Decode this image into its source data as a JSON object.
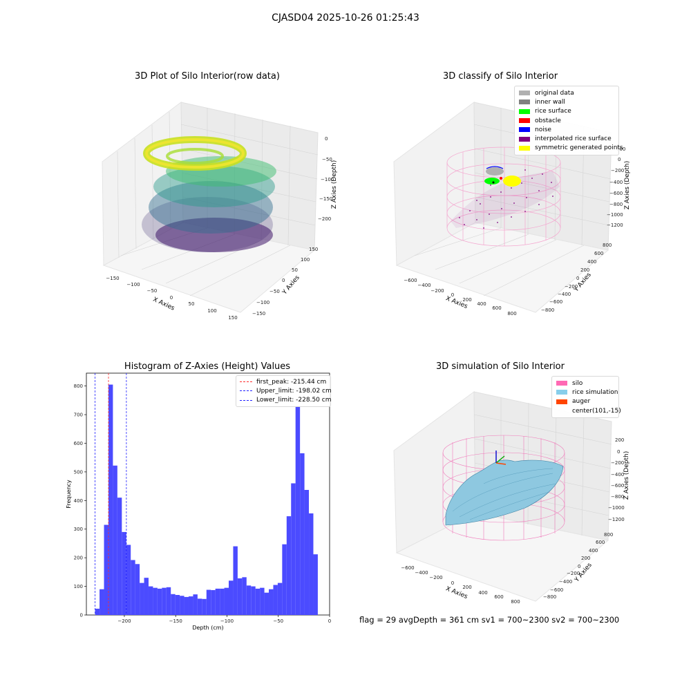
{
  "figure": {
    "title": "CJASD04 2025-10-26 01:25:43",
    "status": "flag = 29 avgDepth = 361 cm sv1 = 700~2300 sv2 = 700~2300"
  },
  "colors": {
    "hist_bar": "#4b4bff",
    "first_peak": "#ff2a2a",
    "limits": "#1f1fff",
    "silo_wire": "#f07aba",
    "rice_sim": "#8ec8e0",
    "auger": "#ff5511"
  },
  "chart_data": [
    {
      "type": "scatter3d",
      "title": "3D Plot of Silo Interior(row data)",
      "xlabel": "X Axies",
      "ylabel": "Y Axies",
      "zlabel": "Z Axies (Depth)",
      "xticks": [
        "−150",
        "−100",
        "−50",
        "0",
        "50",
        "100",
        "150"
      ],
      "yticks": [
        "−150",
        "−100",
        "−50",
        "0",
        "50",
        "100",
        "150"
      ],
      "zticks": [
        "0",
        "−50",
        "−100",
        "−150",
        "−200"
      ],
      "xlim": [
        -170,
        170
      ],
      "ylim": [
        -170,
        170
      ],
      "zlim": [
        -240,
        0
      ],
      "colormap": "viridis"
    },
    {
      "type": "scatter3d",
      "title": "3D classify of Silo Interior",
      "xlabel": "X Axies",
      "ylabel": "Y Axies",
      "zlabel": "Z Axies (Depth)",
      "xticks": [
        "−600",
        "−400",
        "−200",
        "0",
        "200",
        "400",
        "600",
        "800"
      ],
      "yticks": [
        "−800",
        "−600",
        "−400",
        "−200",
        "0",
        "200",
        "400",
        "600",
        "800"
      ],
      "zticks": [
        "200",
        "0",
        "−200",
        "−400",
        "−600",
        "−800",
        "−1000",
        "−1200"
      ],
      "legend": [
        {
          "label": "original data",
          "color": "#b0b0b0"
        },
        {
          "label": "inner wall",
          "color": "#808080"
        },
        {
          "label": "rice surface",
          "color": "#00ff00"
        },
        {
          "label": "obstacle",
          "color": "#ff0000"
        },
        {
          "label": "noise",
          "color": "#0000ff"
        },
        {
          "label": "interpolated rice surface",
          "color": "#800080"
        },
        {
          "label": "symmetric generated points",
          "color": "#ffff00"
        }
      ],
      "legend_position": "top-right"
    },
    {
      "type": "bar",
      "title": "Histogram of Z-Axies (Height) Values",
      "xlabel": "Depth (cm)",
      "ylabel": "Frequency",
      "xlim": [
        -237,
        0
      ],
      "ylim": [
        0,
        845
      ],
      "xticks": [
        -200,
        -150,
        -100,
        -50,
        0
      ],
      "yticks": [
        0,
        100,
        200,
        300,
        400,
        500,
        600,
        700,
        800
      ],
      "bin_start": -228.5,
      "bin_width": 4.34,
      "values": [
        22,
        90,
        315,
        805,
        522,
        410,
        290,
        245,
        192,
        178,
        112,
        130,
        100,
        95,
        92,
        95,
        97,
        73,
        70,
        67,
        63,
        65,
        72,
        57,
        56,
        88,
        87,
        92,
        92,
        95,
        120,
        240,
        128,
        132,
        103,
        100,
        92,
        95,
        78,
        90,
        105,
        112,
        247,
        345,
        460,
        730,
        565,
        437,
        355,
        212
      ],
      "lines": [
        {
          "label": "first_peak: -215.44 cm",
          "x": -215.44,
          "color": "#ff2a2a"
        },
        {
          "label": "Upper_limit: -198.02 cm",
          "x": -198.02,
          "color": "#1f1fff"
        },
        {
          "label": "Lower_limit: -228.50 cm",
          "x": -228.5,
          "color": "#1f1fff"
        }
      ],
      "legend_position": "top-right"
    },
    {
      "type": "surface3d",
      "title": "3D simulation of Silo Interior",
      "xlabel": "X Axies",
      "ylabel": "Y Axies",
      "zlabel": "Z Axies (Depth)",
      "xticks": [
        "−600",
        "−400",
        "−200",
        "0",
        "200",
        "400",
        "600",
        "800"
      ],
      "yticks": [
        "−800",
        "−600",
        "−400",
        "−200",
        "0",
        "200",
        "400",
        "600",
        "800"
      ],
      "zticks": [
        "200",
        "0",
        "−200",
        "−400",
        "−600",
        "−800",
        "−1000",
        "−1200"
      ],
      "legend": [
        {
          "label": "silo",
          "color": "#ff69b4"
        },
        {
          "label": "rice simulation",
          "color": "#87ceeb"
        },
        {
          "label": "auger",
          "color": "#ff4500"
        },
        {
          "label": "center(101,-15)",
          "color": ""
        }
      ],
      "legend_position": "top-right"
    }
  ]
}
